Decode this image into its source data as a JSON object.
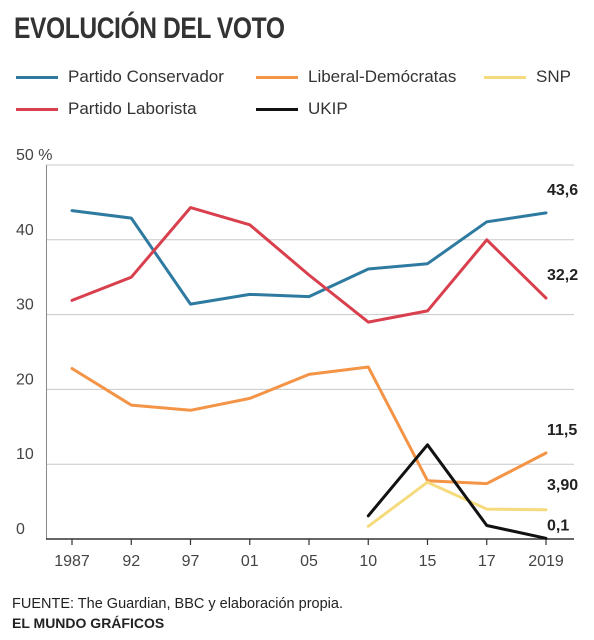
{
  "title": "EVOLUCIÓN DEL VOTO",
  "footer": {
    "source": "FUENTE: The Guardian, BBC y elaboración propia.",
    "credit": "EL MUNDO GRÁFICOS"
  },
  "chart_data": {
    "type": "line",
    "x": [
      "1987",
      "92",
      "97",
      "01",
      "05",
      "10",
      "15",
      "17",
      "2019"
    ],
    "ylim": [
      0,
      50
    ],
    "yticks": [
      "0",
      "10",
      "20",
      "30",
      "40",
      "50 %"
    ],
    "grid": true,
    "legend_placement": "top",
    "series": [
      {
        "name": "Partido Conservador",
        "color": "#2e7aa0",
        "values": [
          43.9,
          42.9,
          31.4,
          32.7,
          32.4,
          36.1,
          36.8,
          42.4,
          43.6
        ],
        "end_label": "43,6"
      },
      {
        "name": "Liberal-Demócratas",
        "color": "#f39446",
        "values": [
          22.8,
          17.9,
          17.2,
          18.8,
          22.0,
          23.0,
          7.8,
          7.4,
          11.5
        ],
        "end_label": "11,5"
      },
      {
        "name": "SNP",
        "color": "#f6db7e",
        "values": [
          null,
          null,
          null,
          null,
          null,
          1.7,
          7.6,
          4.0,
          3.9
        ],
        "end_label": "3,90"
      },
      {
        "name": "Partido Laborista",
        "color": "#d9404e",
        "values": [
          31.9,
          35.0,
          44.3,
          42.0,
          35.3,
          29.0,
          30.5,
          40.0,
          32.2
        ],
        "end_label": "32,2"
      },
      {
        "name": "UKIP",
        "color": "#111111",
        "values": [
          null,
          null,
          null,
          null,
          null,
          3.1,
          12.6,
          1.8,
          0.1
        ],
        "end_label": "0,1"
      }
    ]
  }
}
